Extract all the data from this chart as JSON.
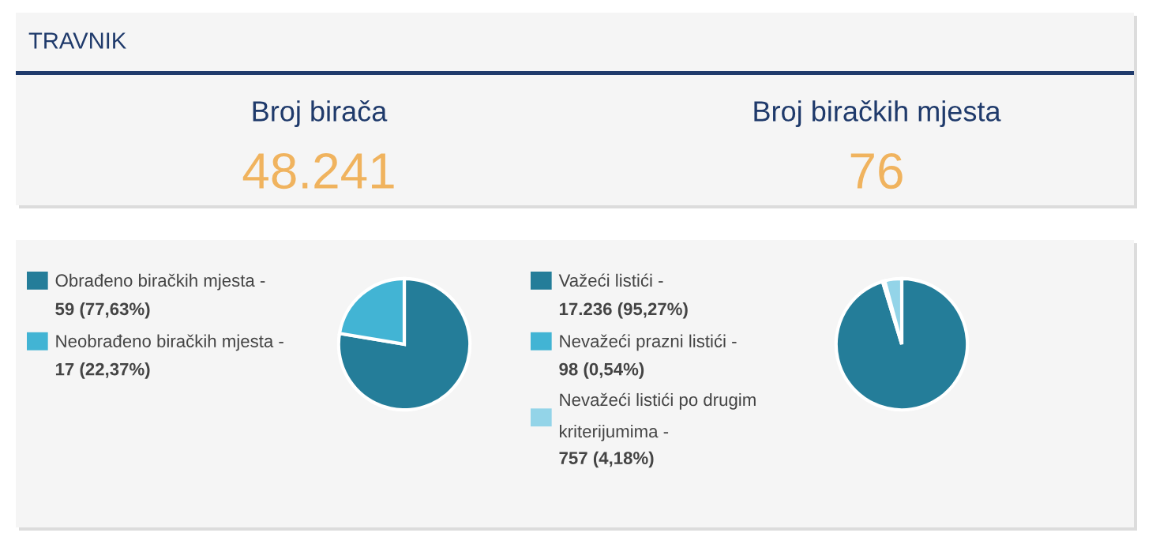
{
  "chart_data": [
    {
      "type": "other",
      "title": "TRAVNIK",
      "annotations": [
        "Broj birača",
        "48.241",
        "Broj biračkih mjesta",
        "76"
      ]
    },
    {
      "type": "pie",
      "legend": "left",
      "categories": [
        "Obrađeno biračkih mjesta -",
        "Neobrađeno biračkih mjesta -"
      ],
      "values": [
        59,
        17
      ],
      "value_labels": [
        "59 (77,63%)",
        "17 (22,37%)"
      ],
      "colors": [
        "#247d99",
        "#42b4d4"
      ]
    },
    {
      "type": "pie",
      "legend": "left",
      "categories": [
        "Važeći listići -",
        "Nevažeći prazni listići -",
        "Nevažeći listići po drugim kriterijumima -"
      ],
      "values": [
        17236,
        98,
        757
      ],
      "value_labels": [
        "17.236 (95,27%)",
        "98 (0,54%)",
        "757 (4,18%)"
      ],
      "colors": [
        "#247d99",
        "#42b4d4",
        "#93d4e8"
      ]
    }
  ]
}
